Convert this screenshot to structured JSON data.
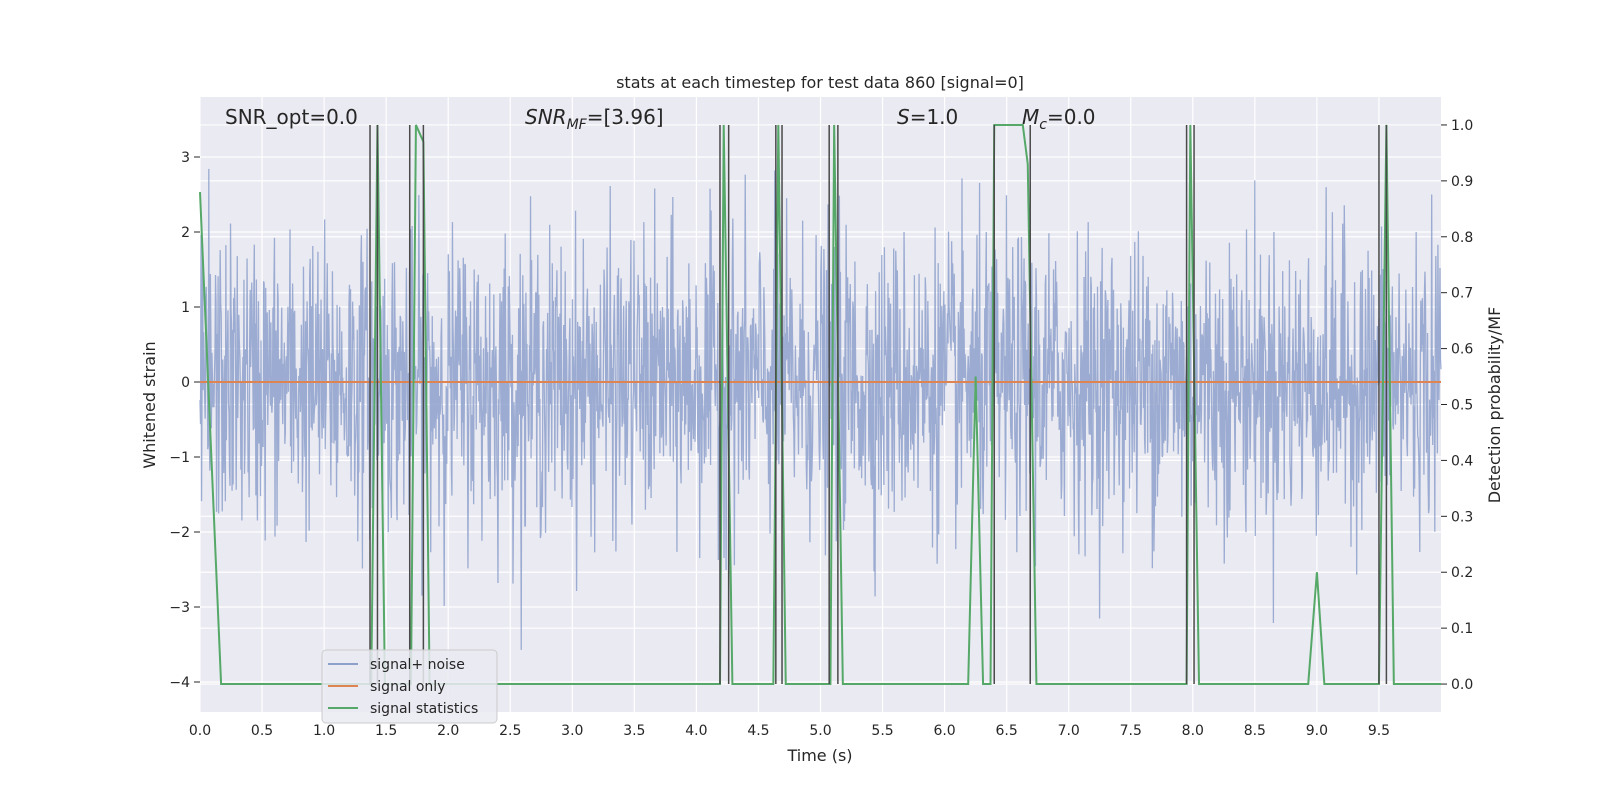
{
  "chart_data": {
    "type": "line",
    "title": "stats at each timestep for test data 860 [signal=0]",
    "xlabel": "Time (s)",
    "ylabel_left": "Whitened strain",
    "ylabel_right": "Detection probability/MF",
    "xlim": [
      0.0,
      10.0
    ],
    "ylim_left": [
      -4.4,
      3.8
    ],
    "ylim_right": [
      -0.05,
      1.05
    ],
    "xticks": [
      0.0,
      0.5,
      1.0,
      1.5,
      2.0,
      2.5,
      3.0,
      3.5,
      4.0,
      4.5,
      5.0,
      5.5,
      6.0,
      6.5,
      7.0,
      7.5,
      8.0,
      8.5,
      9.0,
      9.5
    ],
    "xtick_labels": [
      "0.0",
      "0.5",
      "1.0",
      "1.5",
      "2.0",
      "2.5",
      "3.0",
      "3.5",
      "4.0",
      "4.5",
      "5.0",
      "5.5",
      "6.0",
      "6.5",
      "7.0",
      "7.5",
      "8.0",
      "8.5",
      "9.0",
      "9.5"
    ],
    "yticks_left": [
      -4,
      -3,
      -2,
      -1,
      0,
      1,
      2,
      3
    ],
    "ytick_labels_left": [
      "−4",
      "−3",
      "−2",
      "−1",
      "0",
      "1",
      "2",
      "3"
    ],
    "yticks_right": [
      0.0,
      0.1,
      0.2,
      0.3,
      0.4,
      0.5,
      0.6,
      0.7,
      0.8,
      0.9,
      1.0
    ],
    "ytick_labels_right": [
      "0.0",
      "0.1",
      "0.2",
      "0.3",
      "0.4",
      "0.5",
      "0.6",
      "0.7",
      "0.8",
      "0.9",
      "1.0"
    ],
    "annotations": [
      {
        "id": "snr-opt",
        "text": "SNR_opt=0.0"
      },
      {
        "id": "snr-mf",
        "text": "SNR",
        "sub": "MF",
        "suffix": "=[3.96]",
        "italic": true
      },
      {
        "id": "s-stat",
        "text": "S",
        "suffix": "=1.0",
        "italic": true
      },
      {
        "id": "mc",
        "text": "M",
        "sub": "c",
        "suffix": "=0.0",
        "italic": true
      }
    ],
    "legend": {
      "placement": "lower-left",
      "entries": [
        {
          "label": "signal+ noise",
          "color": "#8da0cb"
        },
        {
          "label": "signal only",
          "color": "#dd8452"
        },
        {
          "label": "signal statistics",
          "color": "#55a868"
        }
      ]
    },
    "series": [
      {
        "name": "signal+ noise",
        "axis": "left",
        "style": "noise",
        "color": "#8da0cb",
        "x_range": [
          0.0,
          10.0
        ],
        "typical_amplitude": 1.0,
        "peak_range": [
          -4.0,
          3.4
        ]
      },
      {
        "name": "signal only",
        "axis": "left",
        "color": "#dd8452",
        "x": [
          0.0,
          10.0
        ],
        "y": [
          0.0,
          0.0
        ]
      },
      {
        "name": "signal statistics",
        "axis": "right",
        "color": "#55a868",
        "x": [
          0.0,
          0.17,
          1.37,
          1.38,
          1.43,
          1.49,
          1.69,
          1.7,
          1.74,
          1.8,
          1.85,
          4.19,
          4.22,
          4.29,
          4.62,
          4.66,
          4.72,
          5.08,
          5.11,
          5.18,
          6.19,
          6.25,
          6.31,
          6.37,
          6.4,
          6.44,
          6.63,
          6.67,
          6.74,
          7.95,
          7.98,
          8.05,
          8.93,
          9.0,
          9.06,
          9.5,
          9.56,
          9.62,
          10.0
        ],
        "y": [
          0.88,
          0.0,
          0.0,
          0.0,
          1.0,
          0.0,
          0.0,
          0.0,
          1.0,
          0.97,
          0.0,
          0.0,
          1.0,
          0.0,
          0.0,
          1.0,
          0.0,
          0.0,
          1.0,
          0.0,
          0.0,
          0.55,
          0.0,
          0.0,
          1.0,
          1.0,
          1.0,
          0.93,
          0.0,
          0.0,
          1.0,
          0.0,
          0.0,
          0.2,
          0.0,
          0.0,
          1.0,
          0.0,
          0.0
        ]
      }
    ],
    "vertical_markers": {
      "color": "#4a4a4a",
      "x": [
        1.37,
        1.43,
        1.69,
        1.8,
        4.19,
        4.26,
        4.64,
        4.69,
        5.07,
        5.14,
        6.4,
        6.69,
        7.95,
        8.01,
        9.5,
        9.56
      ]
    },
    "grid": true
  }
}
